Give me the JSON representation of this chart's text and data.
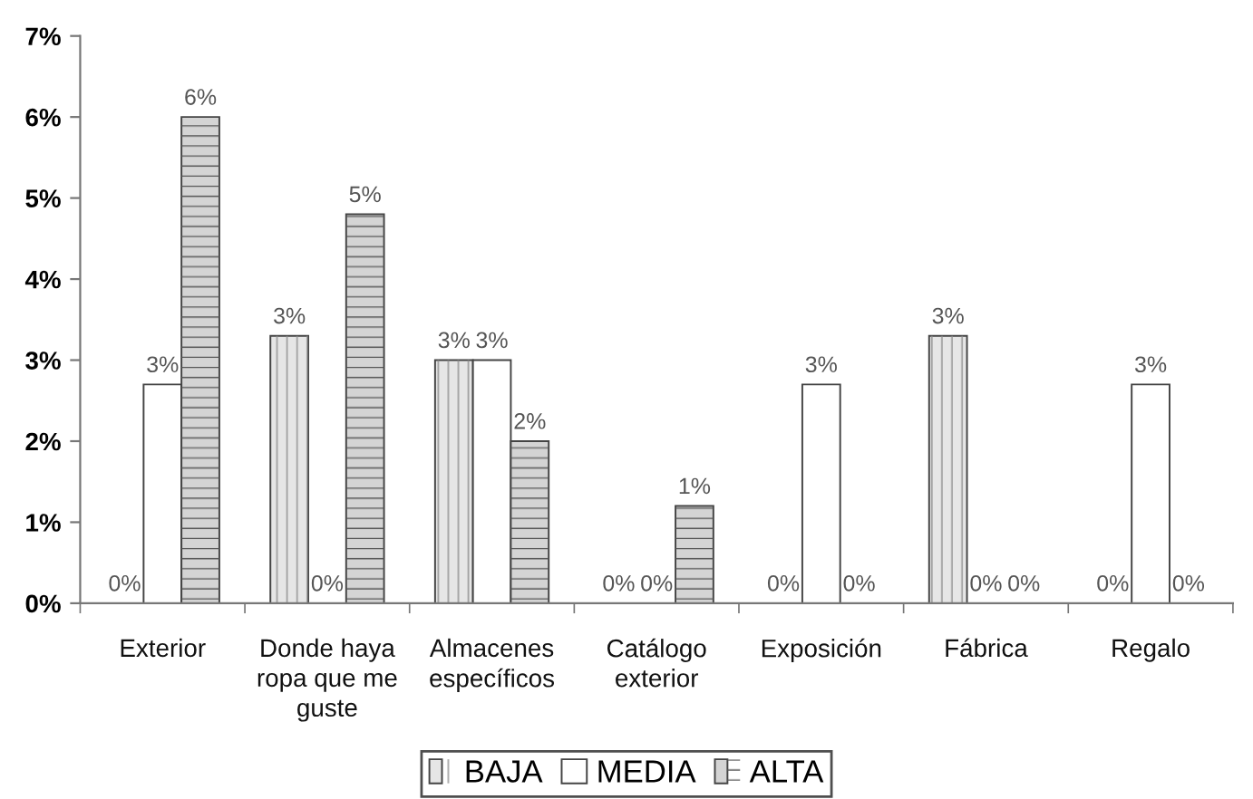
{
  "chart_data": {
    "type": "bar",
    "categories": [
      "Exterior",
      "Donde haya\nropa que me\nguste",
      "Almacenes\nespecíficos",
      "Catálogo\nexterior",
      "Exposición",
      "Fábrica",
      "Regalo"
    ],
    "series": [
      {
        "name": "BAJA",
        "color": "#e6e6e6",
        "values": [
          0,
          3.3,
          3.0,
          0,
          0,
          3.3,
          0
        ],
        "value_labels": [
          "0%",
          "3%",
          "3%",
          "0%",
          "0%",
          "3%",
          "0%"
        ]
      },
      {
        "name": "MEDIA",
        "color": "#ffffff",
        "values": [
          2.7,
          0,
          3.0,
          0,
          2.7,
          0,
          2.7
        ],
        "value_labels": [
          "3%",
          "0%",
          "3%",
          "0%",
          "3%",
          "0%",
          "3%"
        ]
      },
      {
        "name": "ALTA",
        "color": "#d4d4d4",
        "values": [
          6.0,
          4.8,
          2.0,
          1.2,
          0,
          0,
          0
        ],
        "value_labels": [
          "6%",
          "5%",
          "2%",
          "1%",
          "0%",
          "0%",
          "0%"
        ]
      }
    ],
    "ylim": [
      0,
      7
    ],
    "yticks": [
      {
        "value": 0,
        "label": "0%"
      },
      {
        "value": 1,
        "label": "1%"
      },
      {
        "value": 2,
        "label": "2%"
      },
      {
        "value": 3,
        "label": "3%"
      },
      {
        "value": 4,
        "label": "4%"
      },
      {
        "value": 5,
        "label": "5%"
      },
      {
        "value": 6,
        "label": "6%"
      },
      {
        "value": 7,
        "label": "7%"
      }
    ],
    "grid": false,
    "legend": "bottom"
  }
}
